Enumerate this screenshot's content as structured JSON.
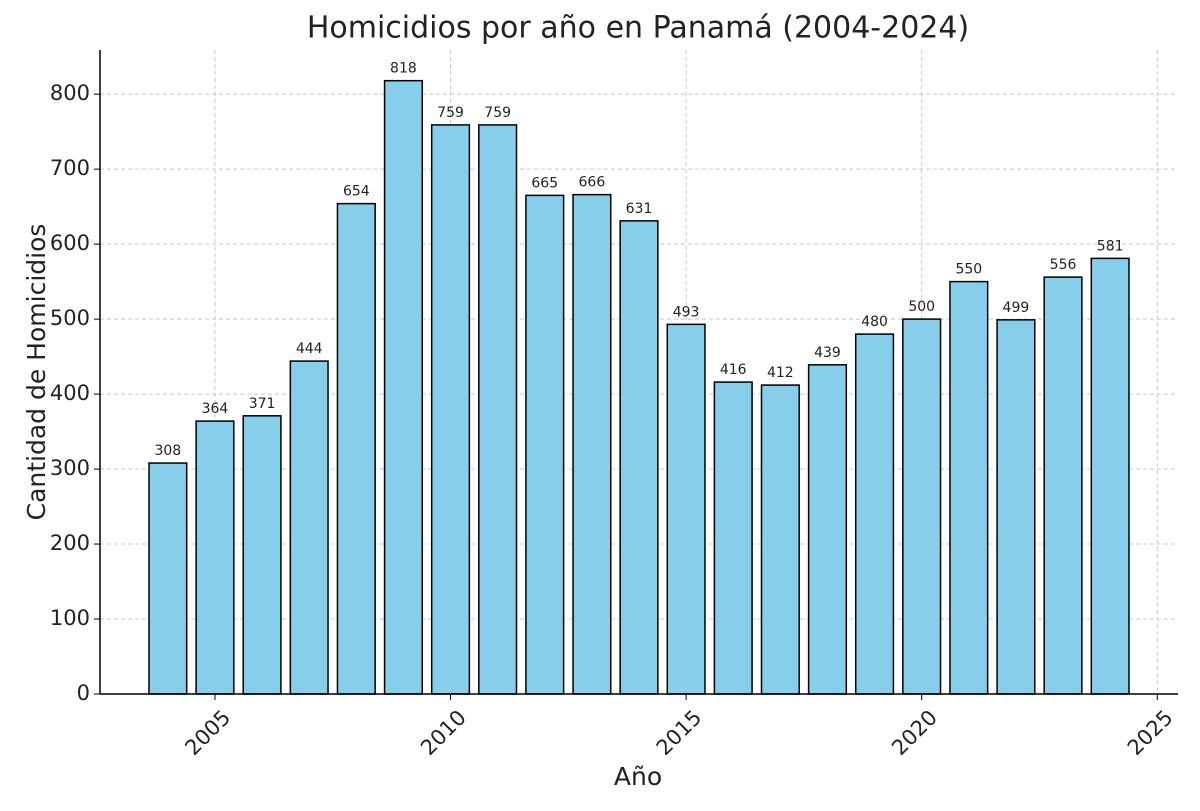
{
  "chart_data": {
    "type": "bar",
    "title": "Homicidios por año en Panamá (2004-2024)",
    "x_label": "Año",
    "y_label": "Cantidad de Homicidios",
    "x": [
      2004,
      2005,
      2006,
      2007,
      2008,
      2009,
      2010,
      2011,
      2012,
      2013,
      2014,
      2015,
      2016,
      2017,
      2018,
      2019,
      2020,
      2021,
      2022,
      2023,
      2024
    ],
    "values": [
      308,
      364,
      371,
      444,
      654,
      818,
      759,
      759,
      665,
      666,
      631,
      493,
      416,
      412,
      439,
      480,
      500,
      550,
      499,
      556,
      581
    ],
    "color": "#87ceeb",
    "edge_color": "#000000",
    "xlim": [
      2002.56,
      2025.44
    ],
    "xticks": [
      2005,
      2010,
      2015,
      2020,
      2025
    ],
    "ylim": [
      0,
      858.9
    ],
    "yticks": [
      0,
      100,
      200,
      300,
      400,
      500,
      600,
      700,
      800
    ],
    "grid": true
  }
}
